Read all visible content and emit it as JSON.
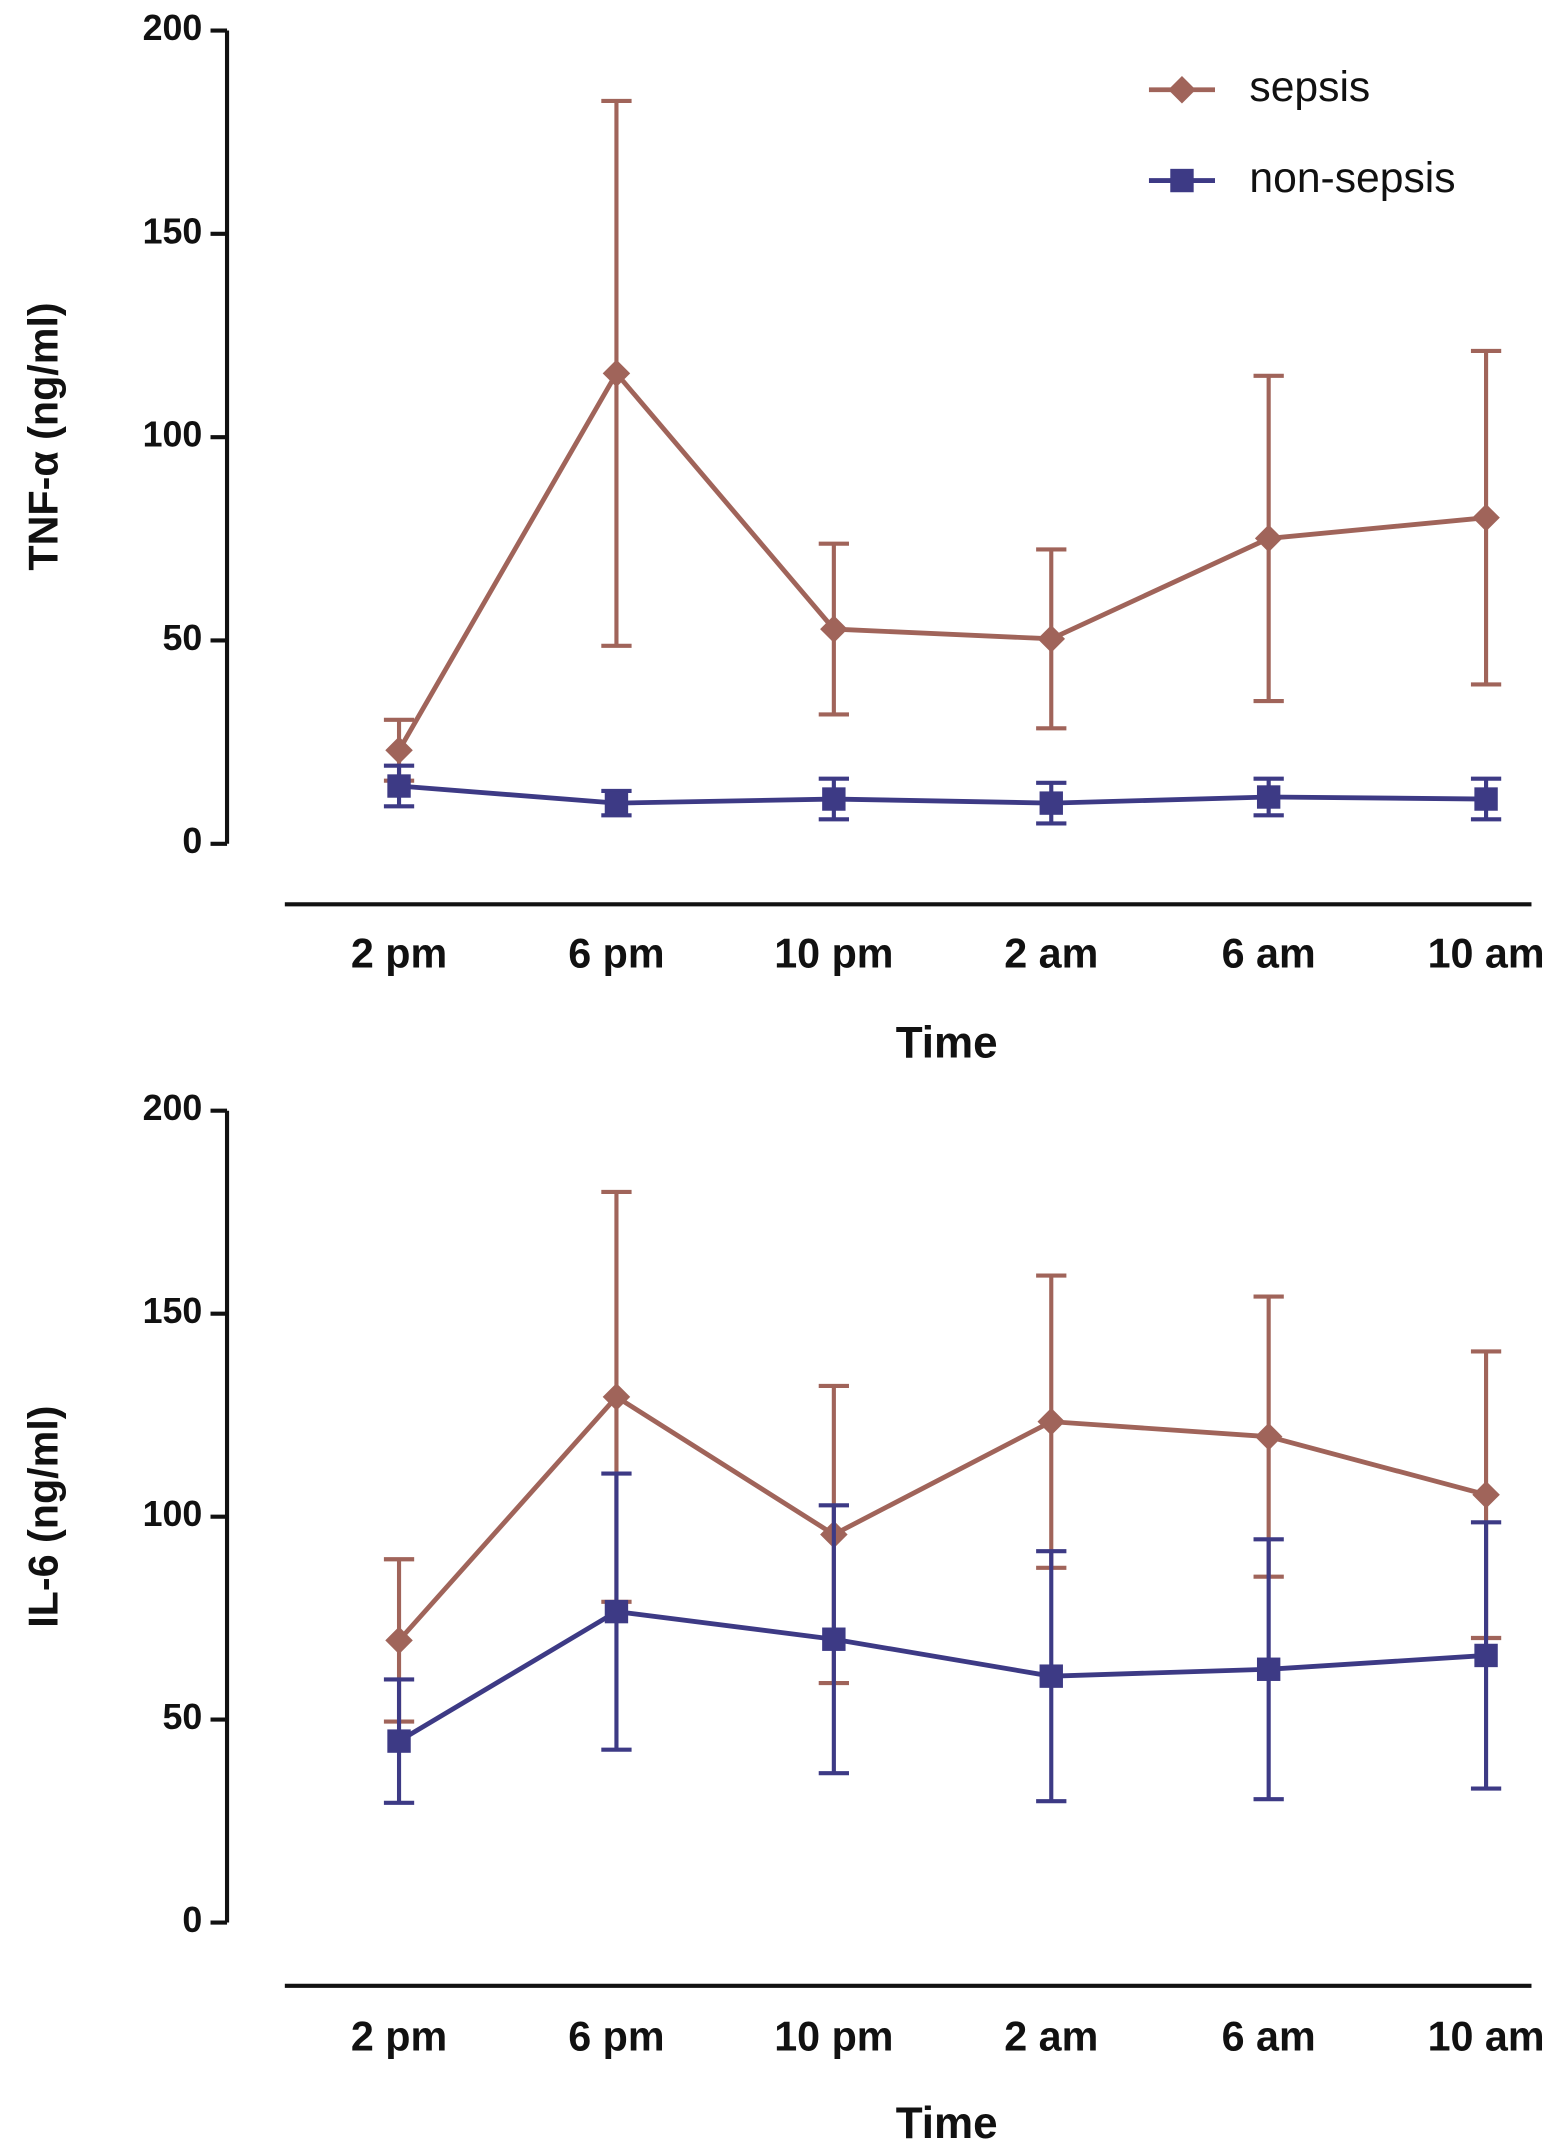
{
  "chart_data": [
    {
      "type": "line",
      "y_label": "TNF-α (ng/ml)",
      "x_label": "Time",
      "categories": [
        "2 pm",
        "6 pm",
        "10 pm",
        "2 am",
        "6 am",
        "10 am"
      ],
      "ylim": [
        0,
        200
      ],
      "yticks": [
        0,
        50,
        100,
        150,
        200
      ],
      "legend": "upper right",
      "series": [
        {
          "name": "sepsis",
          "color": "#a0645a",
          "marker": "diamond",
          "values": [
            23,
            115.7,
            52.8,
            50.4,
            75.1,
            80.2
          ],
          "errors": [
            7.5,
            67,
            21,
            22,
            40,
            41
          ]
        },
        {
          "name": "non-sepsis",
          "color": "#3d3a85",
          "marker": "square",
          "values": [
            14.2,
            10,
            11,
            10,
            11.5,
            11
          ],
          "errors": [
            5,
            3,
            5,
            5,
            4.5,
            5
          ]
        }
      ]
    },
    {
      "type": "line",
      "y_label": "IL-6 (ng/ml)",
      "x_label": "Time",
      "categories": [
        "2 pm",
        "6 pm",
        "10 pm",
        "2 am",
        "6 am",
        "10 am"
      ],
      "ylim": [
        0,
        200
      ],
      "yticks": [
        0,
        50,
        100,
        150,
        200
      ],
      "series": [
        {
          "color": "#a0645a",
          "marker": "diamond",
          "values": [
            69.5,
            129.5,
            95.6,
            123.4,
            119.7,
            105.4
          ],
          "errors": [
            20,
            50.5,
            36.6,
            36,
            34.5,
            35.3
          ]
        },
        {
          "color": "#3d3a85",
          "marker": "square",
          "values": [
            44.7,
            76.6,
            69.8,
            60.7,
            62.4,
            65.8
          ],
          "errors": [
            15.2,
            34,
            33,
            30.8,
            32,
            32.8
          ]
        }
      ]
    }
  ]
}
